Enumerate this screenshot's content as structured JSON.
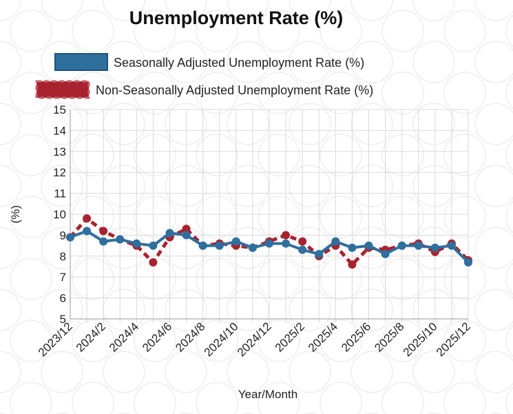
{
  "chart_data": {
    "type": "line",
    "title": "Unemployment Rate (%)",
    "xlabel": "Year/Month",
    "ylabel": "(%)",
    "ylim": [
      5,
      15
    ],
    "yticks": [
      5,
      6,
      7,
      8,
      9,
      10,
      11,
      12,
      13,
      14,
      15
    ],
    "categories": [
      "2023/12",
      "2024/1",
      "2024/2",
      "2024/3",
      "2024/4",
      "2024/5",
      "2024/6",
      "2024/7",
      "2024/8",
      "2024/9",
      "2024/10",
      "2024/11",
      "2024/12",
      "2025/1",
      "2025/2",
      "2025/3",
      "2025/4",
      "2025/5",
      "2025/6",
      "2025/7",
      "2025/8",
      "2025/9",
      "2025/10",
      "2025/11",
      "2025/12"
    ],
    "xtick_labels": [
      "2023/12",
      "2024/2",
      "2024/4",
      "2024/6",
      "2024/8",
      "2024/10",
      "2024/12",
      "2025/2",
      "2025/4",
      "2025/6",
      "2025/8",
      "2025/10",
      "2025/12"
    ],
    "grid": true,
    "legend_position": "top",
    "series": [
      {
        "name": "Seasonally Adjusted Unemployment Rate (%)",
        "color": "#2e6f9e",
        "style": "solid",
        "values": [
          8.9,
          9.2,
          8.7,
          8.8,
          8.6,
          8.5,
          9.1,
          9.0,
          8.5,
          8.5,
          8.7,
          8.4,
          8.6,
          8.6,
          8.3,
          8.1,
          8.7,
          8.4,
          8.5,
          8.1,
          8.5,
          8.5,
          8.4,
          8.5,
          7.7
        ]
      },
      {
        "name": "Non-Seasonally Adjusted Unemployment Rate (%)",
        "color": "#a8232f",
        "style": "dashed",
        "values": [
          8.9,
          9.8,
          9.2,
          8.8,
          8.5,
          7.7,
          8.9,
          9.3,
          8.5,
          8.6,
          8.5,
          8.4,
          8.7,
          9.0,
          8.7,
          8.0,
          8.5,
          7.6,
          8.4,
          8.3,
          8.5,
          8.6,
          8.2,
          8.6,
          7.8
        ]
      }
    ]
  }
}
